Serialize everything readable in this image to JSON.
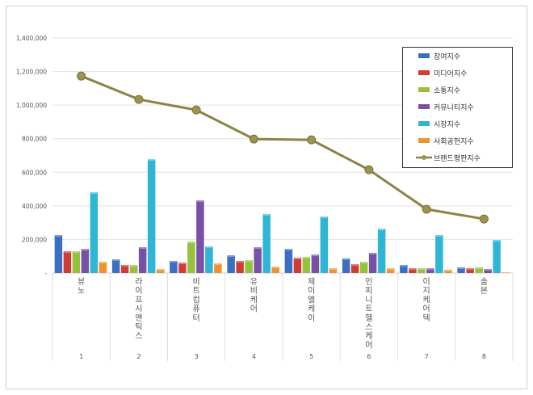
{
  "chart_data": {
    "type": "bar",
    "title": "",
    "xlabel": "",
    "ylabel": "",
    "ylim": [
      0,
      1400000
    ],
    "yticks": [
      "-",
      "200,000",
      "400,000",
      "600,000",
      "800,000",
      "1,000,000",
      "1,200,000",
      "1,400,000"
    ],
    "grid": true,
    "legend_position": "top-right",
    "categories": [
      "뷰노",
      "라이프시맨틱스",
      "비트컴퓨터",
      "유비케어",
      "제이엘케이",
      "인피니트헬스케어",
      "이지케어텍",
      "솔본"
    ],
    "ranks": [
      "1",
      "2",
      "3",
      "4",
      "5",
      "6",
      "7",
      "8"
    ],
    "series": [
      {
        "name": "참여지수",
        "color": "#3a6fc4",
        "values": [
          226000,
          82000,
          72000,
          106000,
          144000,
          87000,
          48000,
          34000
        ]
      },
      {
        "name": "미디어지수",
        "color": "#d23b35",
        "values": [
          130000,
          48000,
          62000,
          72000,
          91000,
          53000,
          29000,
          29000
        ]
      },
      {
        "name": "소통지수",
        "color": "#95c13c",
        "values": [
          130000,
          48000,
          187000,
          77000,
          96000,
          67000,
          29000,
          34000
        ]
      },
      {
        "name": "커뮤니티지수",
        "color": "#7a4fa8",
        "values": [
          144000,
          154000,
          433000,
          154000,
          110000,
          120000,
          29000,
          24000
        ]
      },
      {
        "name": "시장지수",
        "color": "#2fb5d6",
        "values": [
          481000,
          678000,
          159000,
          351000,
          337000,
          264000,
          226000,
          197000
        ]
      },
      {
        "name": "사회공헌지수",
        "color": "#f0922b",
        "values": [
          67000,
          24000,
          58000,
          38000,
          29000,
          29000,
          19000,
          5000
        ]
      }
    ],
    "line": {
      "name": "브랜드평판지수",
      "color": "#8b8444",
      "values": [
        1173000,
        1034000,
        971000,
        798000,
        793000,
        615000,
        380000,
        322000
      ]
    }
  }
}
